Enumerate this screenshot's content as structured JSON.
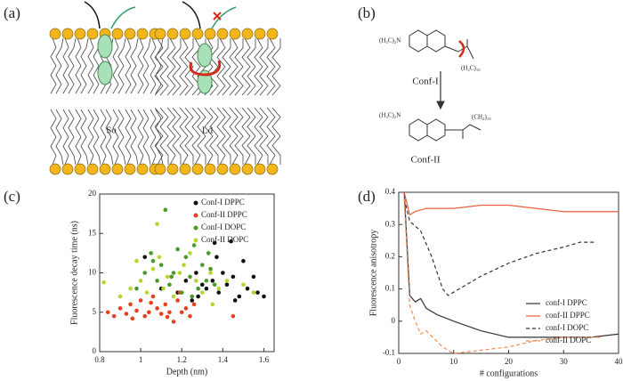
{
  "panels": {
    "a": "(a)",
    "b": "(b)",
    "c": "(c)",
    "d": "(d)"
  },
  "diagram_a": {
    "so": "So",
    "ld": "Ld"
  },
  "diagram_b": {
    "conf1": "Conf-I",
    "conf2": "Conf-II",
    "amine1": "(H₃C)₂N",
    "amine2": "(H₃C)₂N",
    "chain1": "(H₂C)₁₀",
    "chain2": "(CH₂)₁₀"
  },
  "chart_data": [
    {
      "type": "scatter",
      "xlabel": "Depth (nm)",
      "ylabel": "Fluorescence decay time (ns)",
      "xlim": [
        0.8,
        1.65
      ],
      "xticks": [
        0.8,
        1,
        1.2,
        1.4,
        1.6
      ],
      "ylim": [
        0,
        20
      ],
      "yticks": [
        0,
        5,
        10,
        15,
        20
      ],
      "legend": "upper right",
      "series": [
        {
          "name": "Conf-I DPPC",
          "color": "#111111",
          "x": [
            1.02,
            1.1,
            1.18,
            1.22,
            1.25,
            1.28,
            1.32,
            1.35,
            1.36,
            1.38,
            1.4,
            1.42,
            1.44,
            1.45,
            1.48,
            1.5,
            1.52,
            1.55,
            1.57,
            1.6,
            1.37,
            1.3,
            1.46,
            1.27
          ],
          "values": [
            12,
            8,
            7.5,
            9,
            6.5,
            7,
            8,
            9,
            13.8,
            7.5,
            10,
            8.5,
            14,
            9.5,
            7,
            11.5,
            8,
            9.5,
            7.5,
            7,
            12,
            8.5,
            6.5,
            10
          ]
        },
        {
          "name": "Conf-II DPPC",
          "color": "#e8401c",
          "x": [
            0.84,
            0.87,
            0.9,
            0.93,
            0.95,
            0.98,
            1.0,
            1.02,
            1.04,
            1.06,
            1.08,
            1.1,
            1.12,
            1.14,
            1.16,
            1.18,
            1.2,
            1.22,
            1.24,
            1.26,
            0.96,
            1.05,
            1.13,
            1.19,
            1.45
          ],
          "values": [
            5,
            4.5,
            5.5,
            4.8,
            6,
            5.2,
            6.5,
            4.5,
            5,
            7,
            5.5,
            4.8,
            6,
            5,
            3.8,
            6.5,
            5,
            5.5,
            4.5,
            6,
            4.2,
            6.2,
            4.4,
            7.5,
            4.5
          ]
        },
        {
          "name": "Conf-I DOPC",
          "color": "#4a9a2a",
          "x": [
            0.98,
            1.02,
            1.05,
            1.08,
            1.1,
            1.12,
            1.14,
            1.16,
            1.18,
            1.2,
            1.22,
            1.24,
            1.26,
            1.28,
            1.3,
            1.32,
            1.34,
            1.36,
            1.06,
            1.15,
            1.25,
            1.33
          ],
          "values": [
            8,
            10,
            12.5,
            9,
            11,
            18,
            8.5,
            10,
            13,
            7.5,
            12,
            9.5,
            13.5,
            8,
            11,
            9,
            10.5,
            8.5,
            11.5,
            9.5,
            7,
            12.5
          ]
        },
        {
          "name": "Conf-II DOPC",
          "color": "#b8d430",
          "x": [
            0.82,
            0.9,
            0.95,
            0.98,
            1.0,
            1.03,
            1.06,
            1.09,
            1.11,
            1.13,
            1.16,
            1.19,
            1.21,
            1.24,
            1.27,
            1.3,
            1.34,
            1.38,
            1.42,
            1.5,
            1.55,
            1.08,
            1.35
          ],
          "values": [
            8.8,
            7,
            8,
            11.5,
            9,
            7.5,
            10.5,
            12,
            8,
            9.5,
            7,
            10,
            11,
            12.5,
            9,
            7.5,
            10,
            8,
            9,
            8.5,
            7.5,
            16.2,
            6
          ]
        }
      ]
    },
    {
      "type": "line",
      "xlabel": "# configurations",
      "ylabel": "Fluorescence anisotropy",
      "xlim": [
        0,
        40
      ],
      "xticks": [
        0,
        10,
        20,
        30,
        40
      ],
      "ylim": [
        -0.1,
        0.4
      ],
      "yticks": [
        -0.1,
        0,
        0.1,
        0.2,
        0.3,
        0.4
      ],
      "legend": "lower right",
      "series": [
        {
          "name": "conf-I DPPC",
          "color": "#333333",
          "dash": false,
          "x": [
            1,
            2,
            3,
            4,
            5,
            7,
            10,
            15,
            20,
            25,
            30,
            35,
            40
          ],
          "values": [
            0.4,
            0.08,
            0.06,
            0.07,
            0.04,
            0.02,
            0.0,
            -0.03,
            -0.05,
            -0.05,
            -0.05,
            -0.05,
            -0.04
          ]
        },
        {
          "name": "conf-II DPPC",
          "color": "#e8603c",
          "dash": false,
          "x": [
            1,
            2,
            3,
            5,
            10,
            15,
            20,
            25,
            30,
            35,
            40
          ],
          "values": [
            0.4,
            0.33,
            0.34,
            0.35,
            0.35,
            0.36,
            0.36,
            0.35,
            0.34,
            0.34,
            0.34
          ]
        },
        {
          "name": "conf-I DOPC",
          "color": "#333333",
          "dash": true,
          "x": [
            1,
            2,
            4,
            6,
            8,
            9,
            11,
            15,
            20,
            25,
            30,
            33,
            36
          ],
          "values": [
            0.38,
            0.31,
            0.28,
            0.2,
            0.1,
            0.08,
            0.1,
            0.14,
            0.18,
            0.21,
            0.23,
            0.245,
            0.245
          ]
        },
        {
          "name": "conf-II DOPC",
          "color": "#f08a50",
          "dash": true,
          "x": [
            1,
            2,
            3,
            4,
            5,
            8,
            10,
            15,
            20,
            25,
            30,
            37
          ],
          "values": [
            0.38,
            0.05,
            0.0,
            -0.04,
            -0.03,
            -0.08,
            -0.1,
            -0.09,
            -0.08,
            -0.06,
            -0.05,
            -0.05
          ]
        }
      ]
    }
  ]
}
